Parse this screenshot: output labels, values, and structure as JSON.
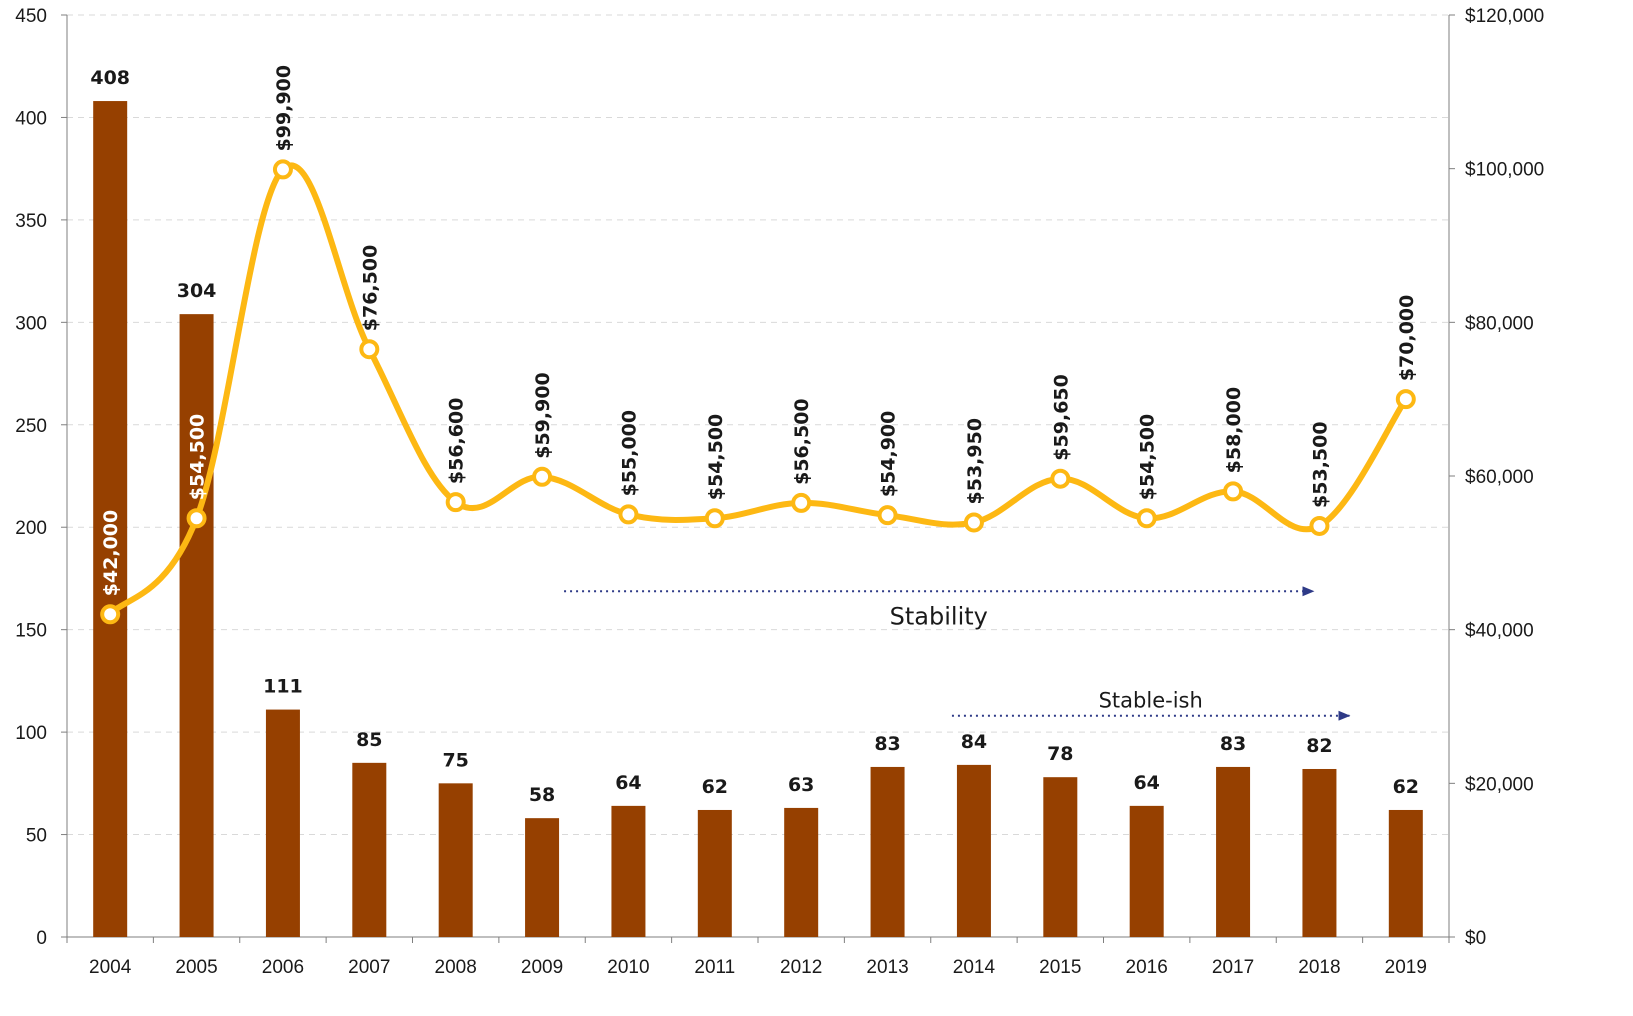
{
  "chart_data": {
    "type": "bar",
    "categories": [
      "2004",
      "2005",
      "2006",
      "2007",
      "2008",
      "2009",
      "2010",
      "2011",
      "2012",
      "2013",
      "2014",
      "2015",
      "2016",
      "2017",
      "2018",
      "2019"
    ],
    "series": [
      {
        "type": "bar",
        "axis": "left",
        "color": "#964000",
        "values": [
          408,
          304,
          111,
          85,
          75,
          58,
          64,
          62,
          63,
          83,
          84,
          78,
          64,
          83,
          82,
          62
        ],
        "labels": [
          "408",
          "304",
          "111",
          "85",
          "75",
          "58",
          "64",
          "62",
          "63",
          "83",
          "84",
          "78",
          "64",
          "83",
          "82",
          "62"
        ]
      },
      {
        "type": "line",
        "axis": "right",
        "color": "#FDB813",
        "values": [
          42000,
          54500,
          99900,
          76500,
          56600,
          59900,
          55000,
          54500,
          56500,
          54900,
          53950,
          59650,
          54500,
          58000,
          53500,
          70000
        ],
        "labels": [
          "$42,000",
          "$54,500",
          "$99,900",
          "$76,500",
          "$56,600",
          "$59,900",
          "$55,000",
          "$54,500",
          "$56,500",
          "$54,900",
          "$53,950",
          "$59,650",
          "$54,500",
          "$58,000",
          "$53,500",
          "$70,000"
        ]
      }
    ],
    "y_left": {
      "lim": [
        0,
        450
      ],
      "ticks": [
        "0",
        "50",
        "100",
        "150",
        "200",
        "250",
        "300",
        "350",
        "400",
        "450"
      ]
    },
    "y_right": {
      "lim": [
        0,
        120000
      ],
      "ticks": [
        "$0",
        "$20,000",
        "$40,000",
        "$60,000",
        "$80,000",
        "$100,000",
        "$120,000"
      ]
    },
    "grid": true,
    "annotations": [
      {
        "text": "Stability",
        "from": "2009",
        "to": "2018",
        "level": 45000,
        "axis": "right"
      },
      {
        "text": "Stable-ish",
        "from": "2014",
        "to": "2018",
        "level": 108,
        "axis": "left"
      }
    ],
    "colors": {
      "bar": "#964000",
      "line": "#FDB813",
      "arrow": "#2E3A87",
      "grid": "#d9d9d9"
    }
  }
}
